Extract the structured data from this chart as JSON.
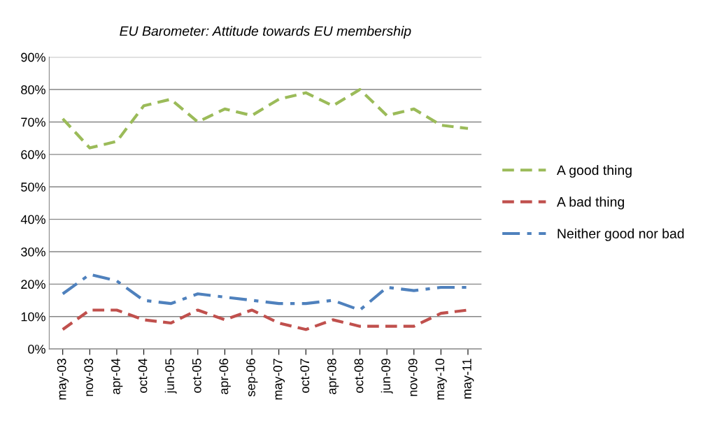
{
  "chart_data": {
    "type": "line",
    "title": "EU Barometer: Attitude towards EU membership",
    "categories": [
      "may-03",
      "nov-03",
      "apr-04",
      "oct-04",
      "jun-05",
      "oct-05",
      "apr-06",
      "sep-06",
      "may-07",
      "oct-07",
      "apr-08",
      "oct-08",
      "jun-09",
      "nov-09",
      "may-10",
      "may-11"
    ],
    "series": [
      {
        "name": "A good thing",
        "color": "#9bbb59",
        "line_style": "dashed",
        "values": [
          71,
          62,
          64,
          75,
          77,
          70,
          74,
          72,
          77,
          79,
          75,
          80,
          72,
          74,
          69,
          68
        ]
      },
      {
        "name": "A bad thing",
        "color": "#c0504d",
        "line_style": "dashed",
        "values": [
          6,
          12,
          12,
          9,
          8,
          12,
          9,
          12,
          8,
          6,
          9,
          7,
          7,
          7,
          11,
          12
        ]
      },
      {
        "name": "Neither good nor bad",
        "color": "#4f81bd",
        "line_style": "dashdot",
        "values": [
          17,
          23,
          21,
          15,
          14,
          17,
          16,
          15,
          14,
          14,
          15,
          12,
          19,
          18,
          19,
          19
        ]
      }
    ],
    "ylim": [
      0,
      90
    ],
    "yticks": [
      {
        "value": 0,
        "label": "0%"
      },
      {
        "value": 10,
        "label": "10%"
      },
      {
        "value": 20,
        "label": "20%"
      },
      {
        "value": 30,
        "label": "30%"
      },
      {
        "value": 40,
        "label": "40%"
      },
      {
        "value": 50,
        "label": "50%"
      },
      {
        "value": 60,
        "label": "60%"
      },
      {
        "value": 70,
        "label": "70%"
      },
      {
        "value": 80,
        "label": "80%"
      },
      {
        "value": 90,
        "label": "90%"
      }
    ],
    "grid": "y",
    "legend": "right",
    "marker": "none"
  }
}
